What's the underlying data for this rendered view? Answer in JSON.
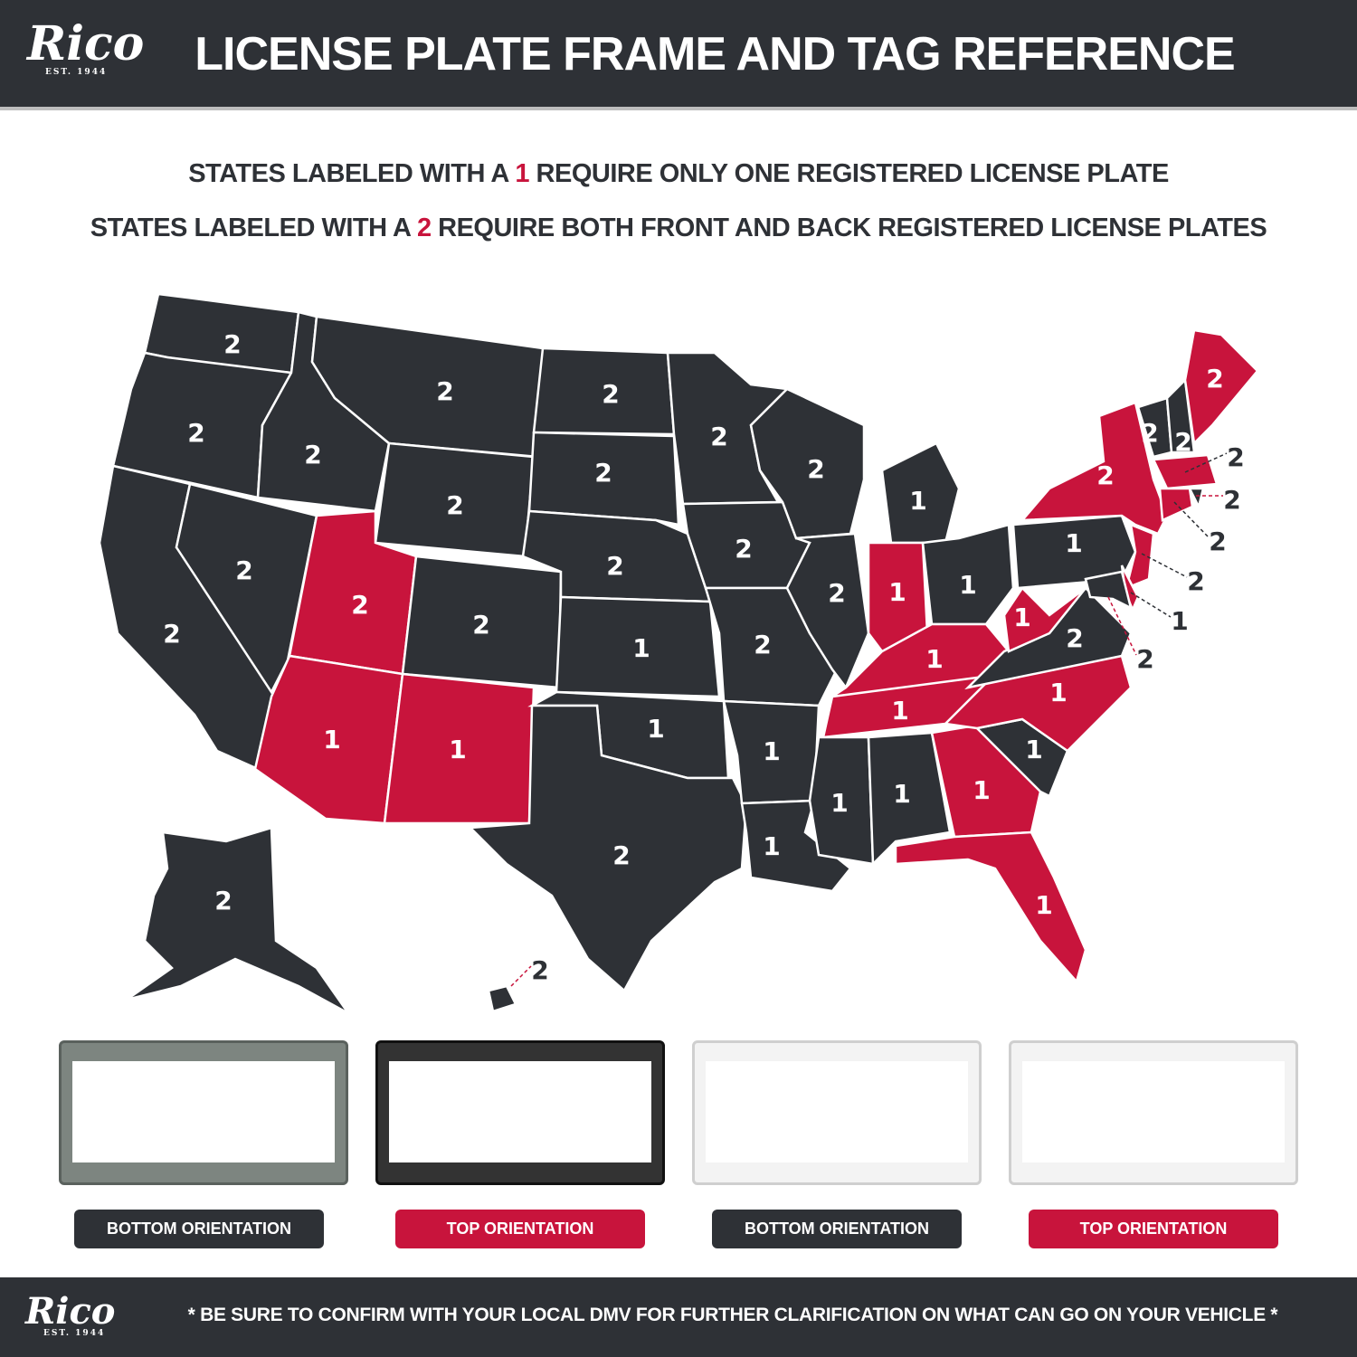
{
  "header": {
    "logo_text": "Rico",
    "logo_est": "EST. 1944",
    "title": "LICENSE PLATE FRAME AND TAG REFERENCE"
  },
  "subtitle": {
    "line1_pre": "STATES LABELED WITH A ",
    "line1_num": "1",
    "line1_post": " REQUIRE ONLY ONE REGISTERED LICENSE PLATE",
    "line2_pre": "STATES LABELED WITH A ",
    "line2_num": "2",
    "line2_post": " REQUIRE BOTH FRONT AND BACK REGISTERED LICENSE PLATES"
  },
  "colors": {
    "dark": "#2e3136",
    "red": "#c8143c"
  },
  "states": {
    "WA": {
      "value": "2",
      "fill": "dark"
    },
    "OR": {
      "value": "2",
      "fill": "dark"
    },
    "CA": {
      "value": "2",
      "fill": "dark"
    },
    "NV": {
      "value": "2",
      "fill": "dark"
    },
    "ID": {
      "value": "2",
      "fill": "dark"
    },
    "MT": {
      "value": "2",
      "fill": "dark"
    },
    "WY": {
      "value": "2",
      "fill": "dark"
    },
    "UT": {
      "value": "2",
      "fill": "red"
    },
    "CO": {
      "value": "2",
      "fill": "dark"
    },
    "AZ": {
      "value": "1",
      "fill": "red"
    },
    "NM": {
      "value": "1",
      "fill": "red"
    },
    "ND": {
      "value": "2",
      "fill": "dark"
    },
    "SD": {
      "value": "2",
      "fill": "dark"
    },
    "NE": {
      "value": "2",
      "fill": "dark"
    },
    "KS": {
      "value": "1",
      "fill": "dark"
    },
    "OK": {
      "value": "1",
      "fill": "dark"
    },
    "TX": {
      "value": "2",
      "fill": "dark"
    },
    "MN": {
      "value": "2",
      "fill": "dark"
    },
    "IA": {
      "value": "2",
      "fill": "dark"
    },
    "MO": {
      "value": "2",
      "fill": "dark"
    },
    "AR": {
      "value": "1",
      "fill": "dark"
    },
    "LA": {
      "value": "1",
      "fill": "dark"
    },
    "WI": {
      "value": "2",
      "fill": "dark"
    },
    "IL": {
      "value": "2",
      "fill": "dark"
    },
    "MI": {
      "value": "1",
      "fill": "dark"
    },
    "IN": {
      "value": "1",
      "fill": "red"
    },
    "OH": {
      "value": "1",
      "fill": "dark"
    },
    "KY": {
      "value": "1",
      "fill": "red"
    },
    "TN": {
      "value": "1",
      "fill": "red"
    },
    "MS": {
      "value": "1",
      "fill": "dark"
    },
    "AL": {
      "value": "1",
      "fill": "dark"
    },
    "GA": {
      "value": "1",
      "fill": "red"
    },
    "FL": {
      "value": "1",
      "fill": "red"
    },
    "SC": {
      "value": "1",
      "fill": "dark"
    },
    "NC": {
      "value": "1",
      "fill": "red"
    },
    "VA": {
      "value": "2",
      "fill": "dark"
    },
    "WV": {
      "value": "1",
      "fill": "red"
    },
    "PA": {
      "value": "1",
      "fill": "dark"
    },
    "NY": {
      "value": "2",
      "fill": "red"
    },
    "VT": {
      "value": "2",
      "fill": "dark"
    },
    "NH": {
      "value": "2",
      "fill": "dark"
    },
    "ME": {
      "value": "2",
      "fill": "red"
    },
    "MA": {
      "value": "2",
      "fill": "red"
    },
    "RI": {
      "value": "2",
      "fill": "dark"
    },
    "CT": {
      "value": "2",
      "fill": "red"
    },
    "NJ": {
      "value": "2",
      "fill": "red"
    },
    "DE": {
      "value": "1",
      "fill": "red"
    },
    "MD": {
      "value": "2",
      "fill": "dark"
    },
    "AK": {
      "value": "2",
      "fill": "dark"
    },
    "HI": {
      "value": "2",
      "fill": "dark"
    }
  },
  "frames": [
    {
      "label": "BOTTOM ORIENTATION",
      "style": "chrome-dark",
      "pill": "dark"
    },
    {
      "label": "TOP ORIENTATION",
      "style": "black",
      "pill": "red"
    },
    {
      "label": "BOTTOM ORIENTATION",
      "style": "white",
      "pill": "dark"
    },
    {
      "label": "TOP ORIENTATION",
      "style": "white",
      "pill": "red"
    }
  ],
  "footer": {
    "logo_text": "Rico",
    "logo_est": "EST. 1944",
    "disclaimer": "* BE SURE TO CONFIRM WITH YOUR LOCAL DMV FOR FURTHER CLARIFICATION ON WHAT CAN GO ON YOUR VEHICLE *"
  }
}
